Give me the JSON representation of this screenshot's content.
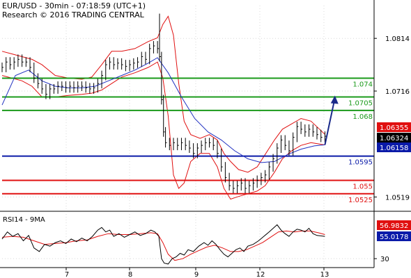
{
  "header": {
    "line1": "EUR/USD - 30min - 07:18:59 (UTC+1)",
    "line2": "Research © 2016 TRADING CENTRAL"
  },
  "colors": {
    "price": "#000000",
    "bollinger": "#e01010",
    "moving_average": "#2030c0",
    "resistance": "#1a9a1a",
    "pivot": "#0a1aa8",
    "support": "#e01010",
    "arrow": "#1a2a8a",
    "current_price_box": "#000000",
    "upper_band_box": "#e01010",
    "lower_band_box": "#0a1aa8",
    "rsi_line": "#000000",
    "rsi_ma": "#e01010",
    "grid": "#d8d8d8"
  },
  "chart_data": [
    {
      "type": "line",
      "panel": "price",
      "ylim": [
        1.0495,
        1.0875
      ],
      "x_tick_labels": [
        "7",
        "8",
        "9",
        "12",
        "13"
      ],
      "y_tick_labels": [
        "1.0814",
        "1.0716",
        "1.0519"
      ],
      "y_ticks": [
        1.0814,
        1.0716,
        1.0519
      ],
      "levels": [
        {
          "label": "1.074",
          "value": 1.074,
          "kind": "resistance"
        },
        {
          "label": "1.0705",
          "value": 1.0705,
          "kind": "resistance"
        },
        {
          "label": "1.068",
          "value": 1.068,
          "kind": "resistance"
        },
        {
          "label": "1.0595",
          "value": 1.0595,
          "kind": "pivot"
        },
        {
          "label": "1.055",
          "value": 1.055,
          "kind": "support"
        },
        {
          "label": "1.0525",
          "value": 1.0525,
          "kind": "support"
        }
      ],
      "price_boxes": [
        {
          "label": "1.06355",
          "value": 1.06355,
          "kind": "upper_band"
        },
        {
          "label": "1.06324",
          "value": 1.06324,
          "kind": "current"
        },
        {
          "label": "1.06158",
          "value": 1.06158,
          "kind": "lower_band"
        }
      ],
      "close_series": [
        [
          0,
          1.076
        ],
        [
          6,
          1.077
        ],
        [
          12,
          1.0765
        ],
        [
          18,
          1.077
        ],
        [
          24,
          1.0775
        ],
        [
          30,
          1.077
        ],
        [
          36,
          1.077
        ],
        [
          42,
          1.076
        ],
        [
          48,
          1.074
        ],
        [
          54,
          1.073
        ],
        [
          60,
          1.072
        ],
        [
          66,
          1.071
        ],
        [
          72,
          1.072
        ],
        [
          78,
          1.072
        ],
        [
          84,
          1.0725
        ],
        [
          90,
          1.0725
        ],
        [
          96,
          1.0722
        ],
        [
          102,
          1.0725
        ],
        [
          108,
          1.0722
        ],
        [
          114,
          1.0725
        ],
        [
          120,
          1.0725
        ],
        [
          126,
          1.0722
        ],
        [
          132,
          1.072
        ],
        [
          138,
          1.0722
        ],
        [
          144,
          1.073
        ],
        [
          150,
          1.0745
        ],
        [
          156,
          1.0765
        ],
        [
          162,
          1.077
        ],
        [
          168,
          1.0765
        ],
        [
          174,
          1.0768
        ],
        [
          180,
          1.0765
        ],
        [
          186,
          1.0762
        ],
        [
          192,
          1.0765
        ],
        [
          198,
          1.0768
        ],
        [
          204,
          1.077
        ],
        [
          210,
          1.078
        ],
        [
          216,
          1.0775
        ],
        [
          222,
          1.0795
        ],
        [
          228,
          1.08
        ],
        [
          234,
          1.0795
        ],
        [
          237,
          1.078
        ],
        [
          240,
          1.07
        ],
        [
          243,
          1.064
        ],
        [
          246,
          1.062
        ],
        [
          252,
          1.0615
        ],
        [
          258,
          1.062
        ],
        [
          264,
          1.0615
        ],
        [
          270,
          1.062
        ],
        [
          276,
          1.0615
        ],
        [
          282,
          1.061
        ],
        [
          288,
          1.06
        ],
        [
          294,
          1.061
        ],
        [
          300,
          1.0615
        ],
        [
          306,
          1.062
        ],
        [
          312,
          1.062
        ],
        [
          318,
          1.0615
        ],
        [
          324,
          1.06
        ],
        [
          330,
          1.0575
        ],
        [
          336,
          1.0555
        ],
        [
          342,
          1.054
        ],
        [
          348,
          1.0535
        ],
        [
          354,
          1.054
        ],
        [
          360,
          1.0545
        ],
        [
          366,
          1.0535
        ],
        [
          372,
          1.054
        ],
        [
          378,
          1.0545
        ],
        [
          384,
          1.055
        ],
        [
          390,
          1.0555
        ],
        [
          396,
          1.056
        ],
        [
          402,
          1.0575
        ],
        [
          408,
          1.059
        ],
        [
          414,
          1.061
        ],
        [
          420,
          1.0625
        ],
        [
          426,
          1.0615
        ],
        [
          432,
          1.0605
        ],
        [
          438,
          1.063
        ],
        [
          444,
          1.065
        ],
        [
          450,
          1.0645
        ],
        [
          456,
          1.064
        ],
        [
          462,
          1.0645
        ],
        [
          468,
          1.064
        ],
        [
          474,
          1.0635
        ],
        [
          480,
          1.063
        ],
        [
          486,
          1.0632
        ]
      ],
      "moving_average_series": [
        [
          0,
          1.069
        ],
        [
          20,
          1.0745
        ],
        [
          40,
          1.0755
        ],
        [
          60,
          1.0735
        ],
        [
          80,
          1.0725
        ],
        [
          100,
          1.0722
        ],
        [
          120,
          1.0722
        ],
        [
          140,
          1.0725
        ],
        [
          160,
          1.0735
        ],
        [
          180,
          1.0745
        ],
        [
          200,
          1.0755
        ],
        [
          220,
          1.0768
        ],
        [
          234,
          1.0778
        ],
        [
          250,
          1.075
        ],
        [
          270,
          1.0705
        ],
        [
          290,
          1.0665
        ],
        [
          310,
          1.064
        ],
        [
          330,
          1.0625
        ],
        [
          350,
          1.0605
        ],
        [
          370,
          1.059
        ],
        [
          390,
          1.0583
        ],
        [
          410,
          1.0585
        ],
        [
          430,
          1.0598
        ],
        [
          450,
          1.0608
        ],
        [
          470,
          1.0614
        ],
        [
          486,
          1.0616
        ]
      ],
      "bollinger_upper": [
        [
          0,
          1.079
        ],
        [
          15,
          1.0785
        ],
        [
          30,
          1.078
        ],
        [
          45,
          1.0775
        ],
        [
          60,
          1.0765
        ],
        [
          80,
          1.0745
        ],
        [
          100,
          1.074
        ],
        [
          120,
          1.0738
        ],
        [
          135,
          1.0742
        ],
        [
          150,
          1.0765
        ],
        [
          165,
          1.079
        ],
        [
          180,
          1.079
        ],
        [
          200,
          1.0795
        ],
        [
          220,
          1.0808
        ],
        [
          234,
          1.0815
        ],
        [
          242,
          1.084
        ],
        [
          250,
          1.0855
        ],
        [
          258,
          1.082
        ],
        [
          266,
          1.073
        ],
        [
          274,
          1.066
        ],
        [
          284,
          1.0635
        ],
        [
          298,
          1.0628
        ],
        [
          312,
          1.0635
        ],
        [
          324,
          1.0625
        ],
        [
          334,
          1.06
        ],
        [
          344,
          1.0585
        ],
        [
          356,
          1.057
        ],
        [
          370,
          1.0565
        ],
        [
          384,
          1.0575
        ],
        [
          396,
          1.0598
        ],
        [
          410,
          1.0625
        ],
        [
          422,
          1.0645
        ],
        [
          436,
          1.0655
        ],
        [
          450,
          1.0665
        ],
        [
          465,
          1.066
        ],
        [
          486,
          1.06355
        ]
      ],
      "bollinger_lower": [
        [
          0,
          1.0745
        ],
        [
          15,
          1.074
        ],
        [
          30,
          1.0735
        ],
        [
          45,
          1.0725
        ],
        [
          60,
          1.0705
        ],
        [
          80,
          1.0705
        ],
        [
          100,
          1.0708
        ],
        [
          120,
          1.071
        ],
        [
          135,
          1.0712
        ],
        [
          150,
          1.0718
        ],
        [
          165,
          1.073
        ],
        [
          180,
          1.0742
        ],
        [
          200,
          1.075
        ],
        [
          220,
          1.076
        ],
        [
          234,
          1.077
        ],
        [
          242,
          1.074
        ],
        [
          250,
          1.067
        ],
        [
          258,
          1.056
        ],
        [
          266,
          1.0535
        ],
        [
          274,
          1.0545
        ],
        [
          284,
          1.0585
        ],
        [
          298,
          1.06
        ],
        [
          312,
          1.06
        ],
        [
          324,
          1.0575
        ],
        [
          334,
          1.0535
        ],
        [
          344,
          1.0515
        ],
        [
          356,
          1.052
        ],
        [
          370,
          1.0525
        ],
        [
          384,
          1.053
        ],
        [
          396,
          1.054
        ],
        [
          410,
          1.0565
        ],
        [
          422,
          1.059
        ],
        [
          436,
          1.0605
        ],
        [
          450,
          1.0615
        ],
        [
          465,
          1.062
        ],
        [
          486,
          1.06158
        ]
      ],
      "projection_arrow": {
        "from": [
          486,
          1.0616
        ],
        "to": [
          500,
          1.0705
        ]
      }
    },
    {
      "type": "line",
      "panel": "rsi",
      "title": "RSI14 - 9MA",
      "ylim": [
        20,
        80
      ],
      "y_tick_labels": [
        "30"
      ],
      "y_ticks": [
        30
      ],
      "value_boxes": [
        {
          "label": "56.9832",
          "value": 56.9832,
          "kind": "ma"
        },
        {
          "label": "55.0178",
          "value": 55.0178,
          "kind": "rsi"
        }
      ],
      "rsi_series": [
        [
          0,
          52
        ],
        [
          8,
          60
        ],
        [
          16,
          55
        ],
        [
          24,
          58
        ],
        [
          32,
          50
        ],
        [
          40,
          56
        ],
        [
          48,
          42
        ],
        [
          56,
          38
        ],
        [
          64,
          46
        ],
        [
          72,
          44
        ],
        [
          80,
          48
        ],
        [
          88,
          50
        ],
        [
          96,
          47
        ],
        [
          104,
          52
        ],
        [
          112,
          49
        ],
        [
          120,
          53
        ],
        [
          128,
          50
        ],
        [
          136,
          55
        ],
        [
          144,
          62
        ],
        [
          150,
          65
        ],
        [
          156,
          60
        ],
        [
          162,
          62
        ],
        [
          168,
          55
        ],
        [
          176,
          58
        ],
        [
          184,
          54
        ],
        [
          192,
          57
        ],
        [
          200,
          60
        ],
        [
          208,
          56
        ],
        [
          216,
          58
        ],
        [
          224,
          62
        ],
        [
          230,
          60
        ],
        [
          236,
          55
        ],
        [
          240,
          30
        ],
        [
          244,
          25
        ],
        [
          250,
          24
        ],
        [
          256,
          30
        ],
        [
          262,
          32
        ],
        [
          268,
          36
        ],
        [
          274,
          34
        ],
        [
          280,
          40
        ],
        [
          288,
          38
        ],
        [
          296,
          44
        ],
        [
          304,
          48
        ],
        [
          310,
          45
        ],
        [
          316,
          50
        ],
        [
          322,
          46
        ],
        [
          328,
          40
        ],
        [
          334,
          35
        ],
        [
          340,
          32
        ],
        [
          346,
          36
        ],
        [
          352,
          40
        ],
        [
          358,
          42
        ],
        [
          364,
          38
        ],
        [
          370,
          44
        ],
        [
          378,
          46
        ],
        [
          386,
          50
        ],
        [
          394,
          55
        ],
        [
          402,
          60
        ],
        [
          408,
          64
        ],
        [
          414,
          68
        ],
        [
          420,
          62
        ],
        [
          426,
          58
        ],
        [
          432,
          55
        ],
        [
          438,
          60
        ],
        [
          444,
          63
        ],
        [
          450,
          62
        ],
        [
          456,
          60
        ],
        [
          462,
          64
        ],
        [
          468,
          58
        ],
        [
          474,
          56
        ],
        [
          480,
          55.5
        ],
        [
          486,
          55.0178
        ]
      ],
      "ma_series": [
        [
          0,
          54
        ],
        [
          16,
          55
        ],
        [
          32,
          54
        ],
        [
          48,
          50
        ],
        [
          64,
          46
        ],
        [
          80,
          47
        ],
        [
          96,
          48
        ],
        [
          112,
          50
        ],
        [
          128,
          51
        ],
        [
          144,
          55
        ],
        [
          160,
          58
        ],
        [
          176,
          57
        ],
        [
          192,
          57
        ],
        [
          208,
          58
        ],
        [
          224,
          59
        ],
        [
          234,
          58
        ],
        [
          242,
          48
        ],
        [
          250,
          35
        ],
        [
          260,
          28
        ],
        [
          272,
          30
        ],
        [
          284,
          35
        ],
        [
          296,
          39
        ],
        [
          308,
          43
        ],
        [
          320,
          45
        ],
        [
          332,
          42
        ],
        [
          344,
          38
        ],
        [
          356,
          38
        ],
        [
          368,
          40
        ],
        [
          380,
          44
        ],
        [
          392,
          48
        ],
        [
          404,
          54
        ],
        [
          416,
          60
        ],
        [
          428,
          61
        ],
        [
          440,
          60
        ],
        [
          452,
          61
        ],
        [
          464,
          61
        ],
        [
          476,
          59
        ],
        [
          486,
          56.9832
        ]
      ]
    }
  ]
}
